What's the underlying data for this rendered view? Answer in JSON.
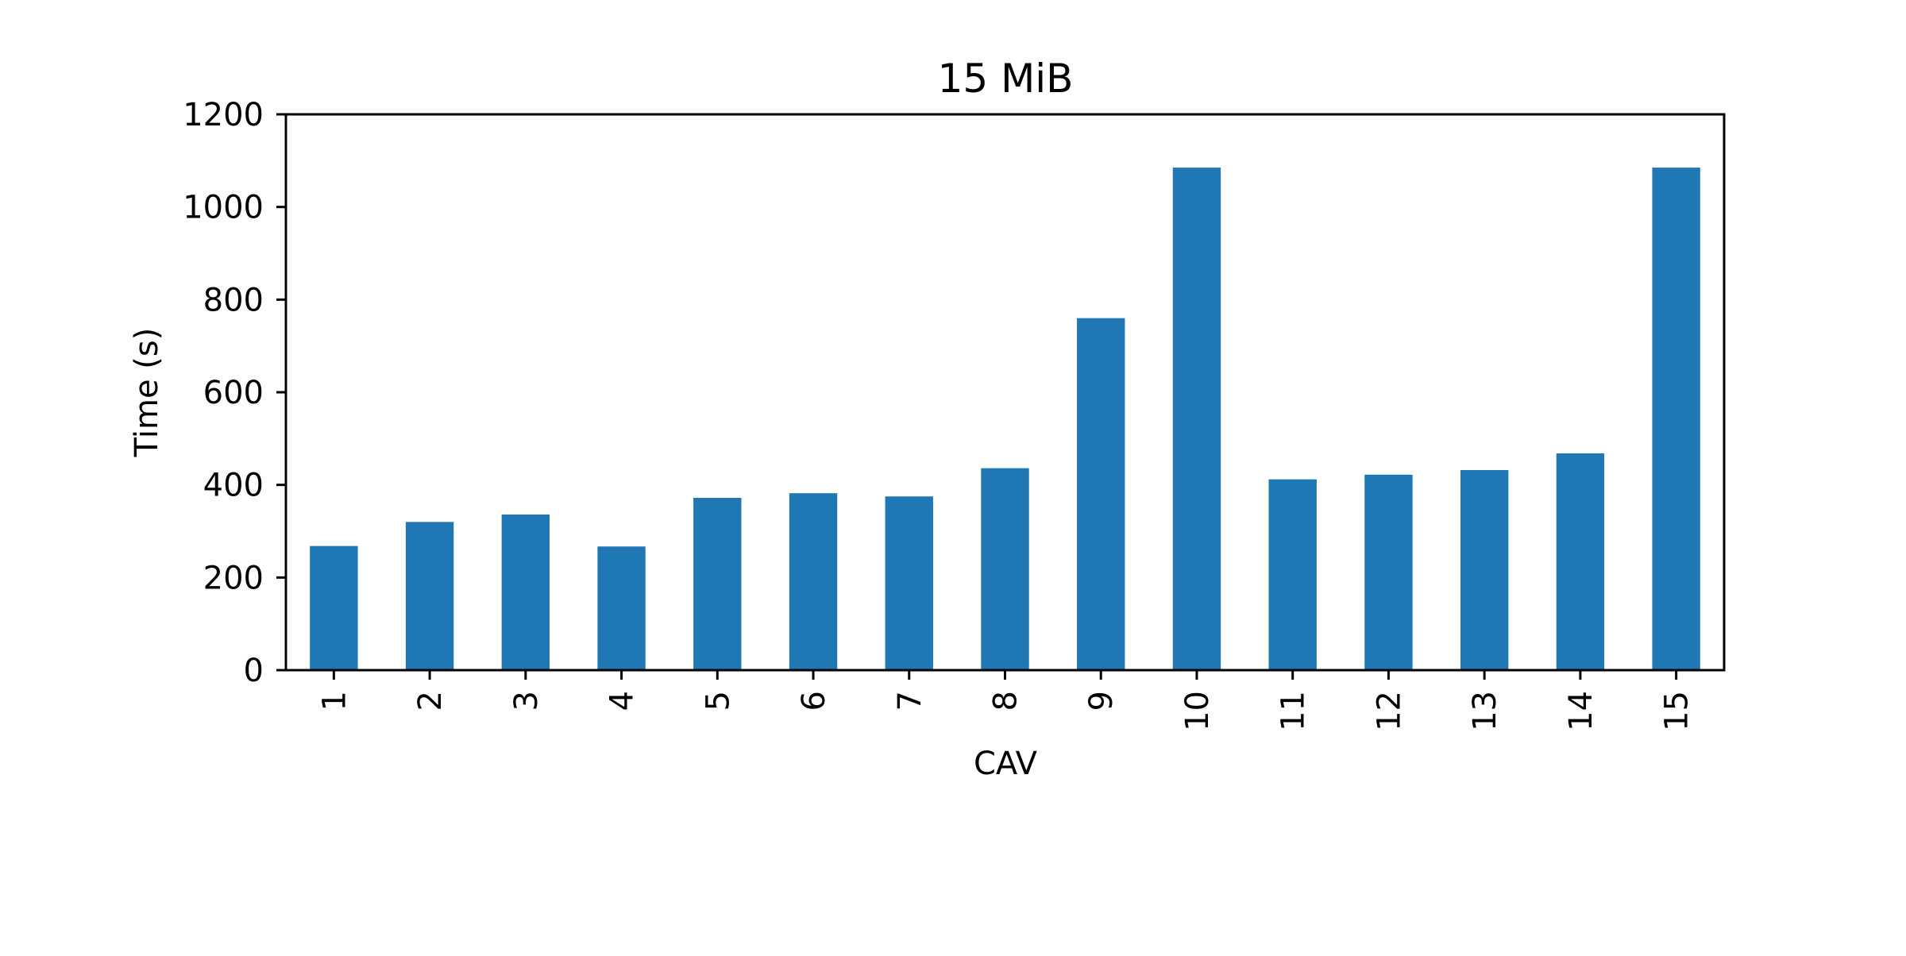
{
  "chart_data": {
    "type": "bar",
    "title": "15 MiB",
    "xlabel": "CAV",
    "ylabel": "Time (s)",
    "categories": [
      "1",
      "2",
      "3",
      "4",
      "5",
      "6",
      "7",
      "8",
      "9",
      "10",
      "11",
      "12",
      "13",
      "14",
      "15"
    ],
    "values": [
      268,
      320,
      336,
      267,
      372,
      382,
      375,
      436,
      760,
      1085,
      412,
      422,
      432,
      468,
      1085
    ],
    "ylim": [
      0,
      1200
    ],
    "yticks": [
      0,
      200,
      400,
      600,
      800,
      1000,
      1200
    ],
    "grid": false,
    "legend": "none",
    "bar_color": "#1f77b4"
  }
}
